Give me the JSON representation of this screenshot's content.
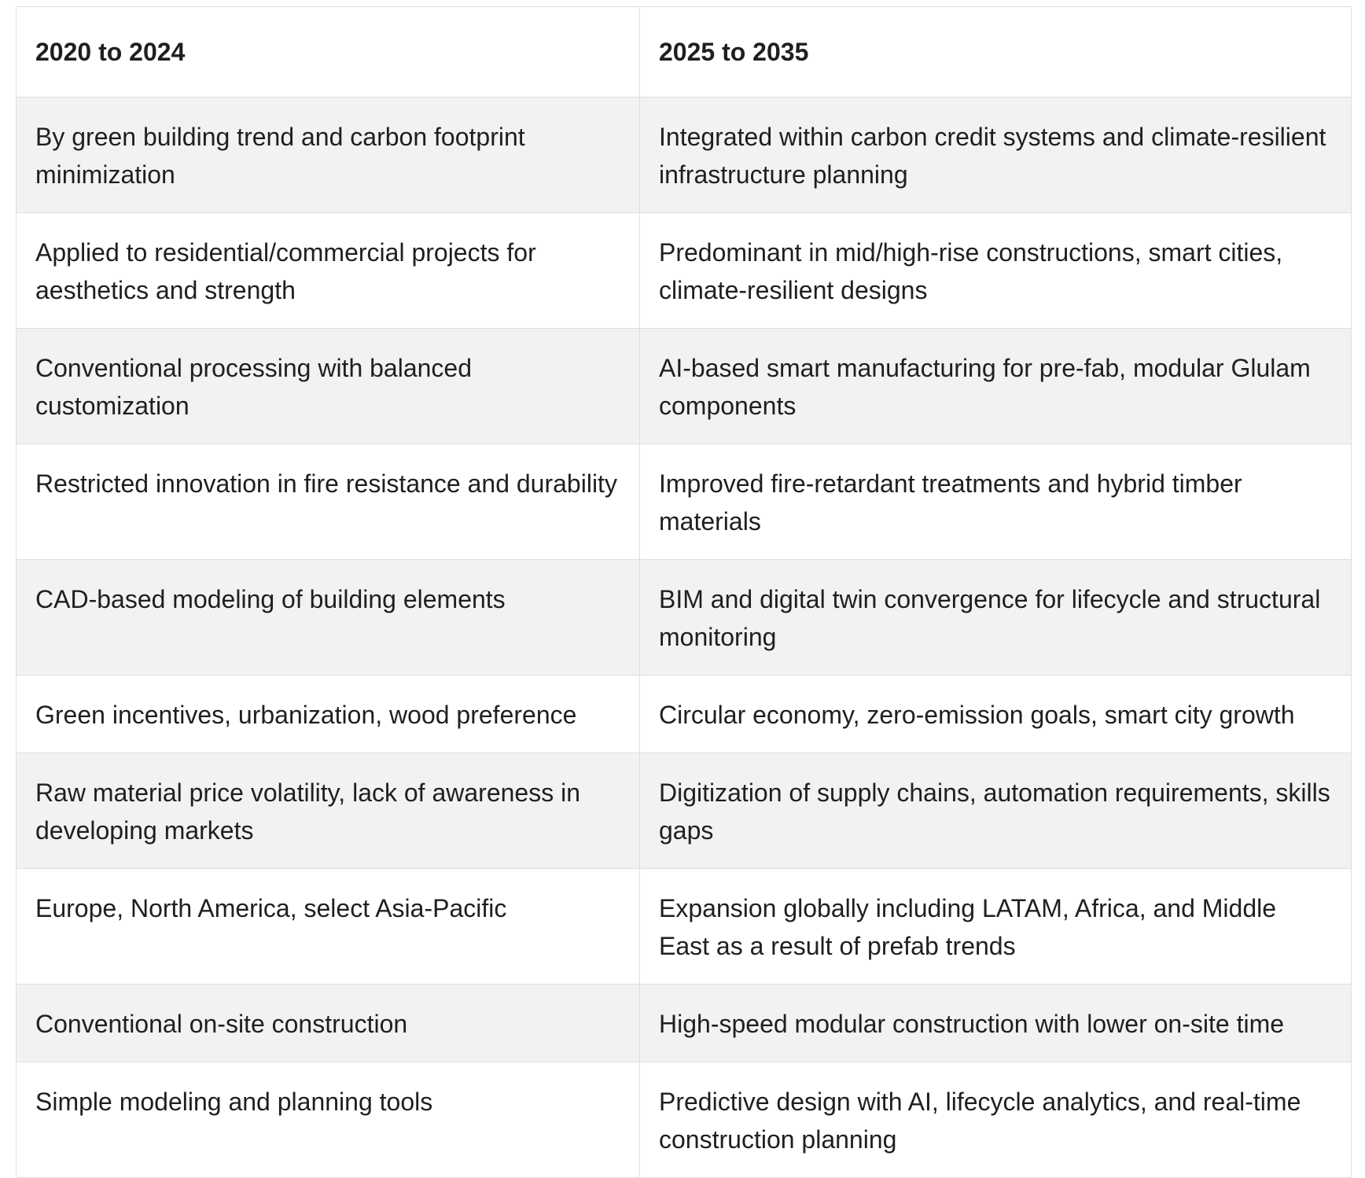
{
  "table": {
    "headers": [
      "2020 to 2024",
      "2025 to 2035"
    ],
    "rows": [
      [
        "By green building trend and carbon footprint minimization",
        "Integrated within carbon credit systems and climate-resilient infrastructure planning"
      ],
      [
        "Applied to residential/commercial projects for aesthetics and strength",
        "Predominant in mid/high-rise constructions, smart cities, climate-resilient designs"
      ],
      [
        "Conventional processing with balanced customization",
        "AI-based smart manufacturing for pre-fab, modular Glulam components"
      ],
      [
        "Restricted innovation in fire resistance and durability",
        "Improved fire-retardant treatments and hybrid timber materials"
      ],
      [
        "CAD-based modeling of building elements",
        "BIM and digital twin convergence for lifecycle and structural monitoring"
      ],
      [
        "Green incentives, urbanization, wood preference",
        "Circular economy, zero-emission goals, smart city growth"
      ],
      [
        "Raw material price volatility, lack of awareness in developing markets",
        "Digitization of supply chains, automation requirements, skills gaps"
      ],
      [
        "Europe, North America, select Asia-Pacific",
        "Expansion globally including LATAM, Africa, and Middle East as a result of prefab trends"
      ],
      [
        "Conventional on-site construction",
        "High-speed modular construction with lower on-site time"
      ],
      [
        "Simple modeling and planning tools",
        "Predictive design with AI, lifecycle analytics, and real-time construction planning"
      ]
    ]
  }
}
